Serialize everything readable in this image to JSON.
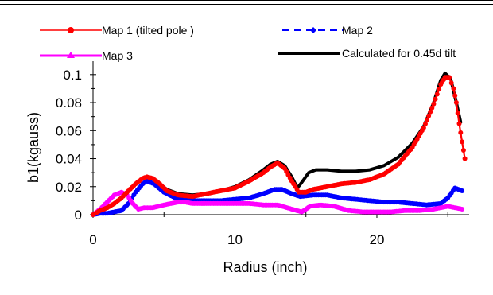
{
  "chart_data": {
    "type": "line",
    "title": "",
    "xlabel": "Radius (inch)",
    "ylabel": "b1(kgauss)",
    "xlim": [
      0,
      26.5
    ],
    "ylim": [
      0,
      0.105
    ],
    "x_ticks": [
      0,
      10,
      20
    ],
    "x_tick_labels": [
      "0",
      "10",
      "20"
    ],
    "y_ticks": [
      0,
      0.02,
      0.04,
      0.06,
      0.08,
      0.1
    ],
    "y_tick_labels": [
      "0",
      "0.02",
      "0.04",
      "0.06",
      "0.08",
      "0.1"
    ],
    "grid": false,
    "legend_position": "top",
    "series": [
      {
        "name": "Calculated for 0.45d tilt",
        "color": "#000000",
        "style": "solid-thick",
        "points": [
          [
            0,
            0
          ],
          [
            0.5,
            0.003
          ],
          [
            1,
            0.005
          ],
          [
            1.5,
            0.008
          ],
          [
            2,
            0.012
          ],
          [
            2.5,
            0.017
          ],
          [
            3,
            0.022
          ],
          [
            3.5,
            0.026
          ],
          [
            3.8,
            0.027
          ],
          [
            4.2,
            0.026
          ],
          [
            4.7,
            0.022
          ],
          [
            5.2,
            0.018
          ],
          [
            6,
            0.015
          ],
          [
            7,
            0.014
          ],
          [
            8,
            0.015
          ],
          [
            9,
            0.017
          ],
          [
            10,
            0.02
          ],
          [
            11,
            0.025
          ],
          [
            12,
            0.032
          ],
          [
            12.5,
            0.036
          ],
          [
            13,
            0.038
          ],
          [
            13.5,
            0.035
          ],
          [
            14,
            0.027
          ],
          [
            14.4,
            0.019
          ],
          [
            14.7,
            0.023
          ],
          [
            15.2,
            0.03
          ],
          [
            15.7,
            0.032
          ],
          [
            16.5,
            0.032
          ],
          [
            17.5,
            0.031
          ],
          [
            18.5,
            0.031
          ],
          [
            19.5,
            0.032
          ],
          [
            20.5,
            0.035
          ],
          [
            21.5,
            0.041
          ],
          [
            22.5,
            0.051
          ],
          [
            23.3,
            0.063
          ],
          [
            24,
            0.08
          ],
          [
            24.5,
            0.096
          ],
          [
            24.8,
            0.101
          ],
          [
            25.2,
            0.097
          ],
          [
            25.6,
            0.08
          ],
          [
            25.9,
            0.066
          ]
        ]
      },
      {
        "name": "Map 1 (tilted pole )",
        "color": "#ff0000",
        "style": "solid-marker",
        "points": [
          [
            0,
            0
          ],
          [
            0.5,
            0.003
          ],
          [
            1,
            0.005
          ],
          [
            1.5,
            0.008
          ],
          [
            2,
            0.012
          ],
          [
            2.5,
            0.017
          ],
          [
            3,
            0.022
          ],
          [
            3.5,
            0.026
          ],
          [
            3.8,
            0.027
          ],
          [
            4.2,
            0.026
          ],
          [
            4.7,
            0.022
          ],
          [
            5.2,
            0.017
          ],
          [
            6,
            0.014
          ],
          [
            7,
            0.013
          ],
          [
            8,
            0.015
          ],
          [
            9,
            0.017
          ],
          [
            10,
            0.019
          ],
          [
            11,
            0.024
          ],
          [
            12,
            0.03
          ],
          [
            12.5,
            0.034
          ],
          [
            13,
            0.037
          ],
          [
            13.5,
            0.033
          ],
          [
            14,
            0.024
          ],
          [
            14.5,
            0.016
          ],
          [
            15,
            0.016
          ],
          [
            15.5,
            0.018
          ],
          [
            16.5,
            0.02
          ],
          [
            17.5,
            0.022
          ],
          [
            18.5,
            0.023
          ],
          [
            19.5,
            0.025
          ],
          [
            20.5,
            0.029
          ],
          [
            21.5,
            0.036
          ],
          [
            22.5,
            0.048
          ],
          [
            23.3,
            0.062
          ],
          [
            24,
            0.079
          ],
          [
            24.5,
            0.093
          ],
          [
            24.8,
            0.098
          ],
          [
            25.1,
            0.098
          ],
          [
            25.4,
            0.09
          ],
          [
            25.6,
            0.08
          ],
          [
            25.8,
            0.065
          ],
          [
            26,
            0.052
          ],
          [
            26.2,
            0.04
          ]
        ]
      },
      {
        "name": "Map 2",
        "color": "#0000ff",
        "style": "dashed-marker",
        "points": [
          [
            0,
            0
          ],
          [
            0.5,
            0.001
          ],
          [
            1,
            0.001
          ],
          [
            1.5,
            0.002
          ],
          [
            2,
            0.003
          ],
          [
            2.5,
            0.008
          ],
          [
            3,
            0.016
          ],
          [
            3.5,
            0.022
          ],
          [
            3.8,
            0.024
          ],
          [
            4.3,
            0.022
          ],
          [
            5,
            0.016
          ],
          [
            6,
            0.011
          ],
          [
            7,
            0.01
          ],
          [
            8,
            0.01
          ],
          [
            9,
            0.01
          ],
          [
            10,
            0.011
          ],
          [
            11,
            0.012
          ],
          [
            12,
            0.015
          ],
          [
            12.8,
            0.018
          ],
          [
            13.3,
            0.018
          ],
          [
            14,
            0.015
          ],
          [
            14.6,
            0.013
          ],
          [
            15.5,
            0.014
          ],
          [
            16.5,
            0.014
          ],
          [
            17.5,
            0.012
          ],
          [
            18.5,
            0.011
          ],
          [
            19.5,
            0.01
          ],
          [
            20.5,
            0.009
          ],
          [
            21.5,
            0.009
          ],
          [
            22.5,
            0.008
          ],
          [
            23.5,
            0.007
          ],
          [
            24.5,
            0.008
          ],
          [
            25,
            0.012
          ],
          [
            25.5,
            0.019
          ],
          [
            26,
            0.017
          ]
        ]
      },
      {
        "name": "Map 3",
        "color": "#ff00ff",
        "style": "solid-marker",
        "points": [
          [
            0,
            0
          ],
          [
            0.5,
            0.004
          ],
          [
            1,
            0.009
          ],
          [
            1.5,
            0.014
          ],
          [
            2,
            0.016
          ],
          [
            2.4,
            0.014
          ],
          [
            2.8,
            0.008
          ],
          [
            3.2,
            0.004
          ],
          [
            3.6,
            0.005
          ],
          [
            4.2,
            0.005
          ],
          [
            5,
            0.007
          ],
          [
            6,
            0.009
          ],
          [
            6.5,
            0.009
          ],
          [
            7,
            0.008
          ],
          [
            8,
            0.008
          ],
          [
            9,
            0.008
          ],
          [
            10,
            0.008
          ],
          [
            11,
            0.008
          ],
          [
            12,
            0.007
          ],
          [
            13,
            0.007
          ],
          [
            14,
            0.004
          ],
          [
            14.7,
            0.002
          ],
          [
            15.3,
            0.006
          ],
          [
            16,
            0.007
          ],
          [
            17,
            0.006
          ],
          [
            18,
            0.003
          ],
          [
            19,
            0.002
          ],
          [
            20,
            0.002
          ],
          [
            21,
            0.002
          ],
          [
            22,
            0.003
          ],
          [
            23,
            0.003
          ],
          [
            24,
            0.004
          ],
          [
            25,
            0.006
          ],
          [
            25.5,
            0.005
          ],
          [
            26,
            0.004
          ]
        ]
      }
    ]
  }
}
